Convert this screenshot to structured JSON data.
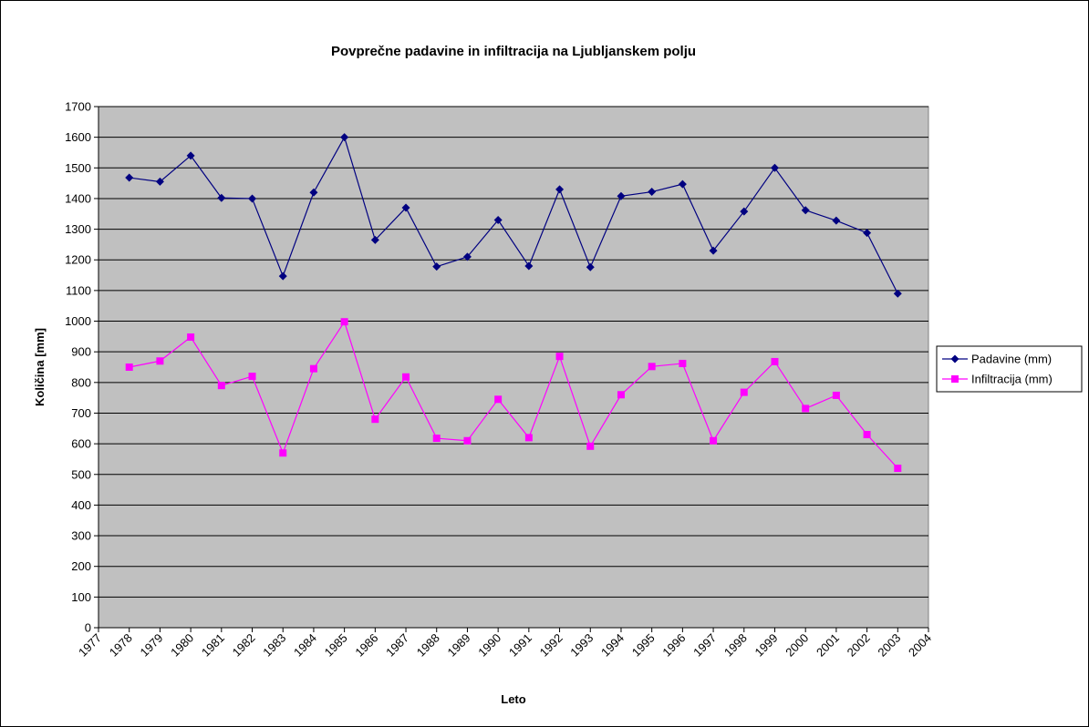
{
  "chart_data": {
    "type": "line",
    "title": "Povprečne padavine in infiltracija na Ljubljanskem polju",
    "x_label": "Leto",
    "y_label": "Količina [mm]",
    "x": [
      1978,
      1979,
      1980,
      1981,
      1982,
      1983,
      1984,
      1985,
      1986,
      1987,
      1988,
      1989,
      1990,
      1991,
      1992,
      1993,
      1994,
      1995,
      1996,
      1997,
      1998,
      1999,
      2000,
      2001,
      2002,
      2003
    ],
    "series": [
      {
        "name": "Padavine (mm)",
        "color": "#000080",
        "marker": "diamond",
        "values": [
          1468,
          1455,
          1540,
          1402,
          1400,
          1147,
          1420,
          1600,
          1265,
          1370,
          1178,
          1210,
          1330,
          1180,
          1430,
          1176,
          1408,
          1422,
          1447,
          1230,
          1358,
          1500,
          1362,
          1328,
          1288,
          1090
        ]
      },
      {
        "name": "Infiltracija (mm)",
        "color": "#ff00ff",
        "marker": "square",
        "values": [
          850,
          870,
          948,
          790,
          820,
          570,
          845,
          998,
          680,
          818,
          618,
          610,
          745,
          620,
          885,
          592,
          760,
          852,
          862,
          610,
          768,
          868,
          715,
          758,
          630,
          520
        ]
      }
    ],
    "xlim": [
      1977,
      2004
    ],
    "xticks": [
      1977,
      1978,
      1979,
      1980,
      1981,
      1982,
      1983,
      1984,
      1985,
      1986,
      1987,
      1988,
      1989,
      1990,
      1991,
      1992,
      1993,
      1994,
      1995,
      1996,
      1997,
      1998,
      1999,
      2000,
      2001,
      2002,
      2003,
      2004
    ],
    "ylim": [
      0,
      1700
    ],
    "yticks": [
      0,
      100,
      200,
      300,
      400,
      500,
      600,
      700,
      800,
      900,
      1000,
      1100,
      1200,
      1300,
      1400,
      1500,
      1600,
      1700
    ],
    "grid": true,
    "legend": "right",
    "plot_background": "#c0c0c0"
  }
}
